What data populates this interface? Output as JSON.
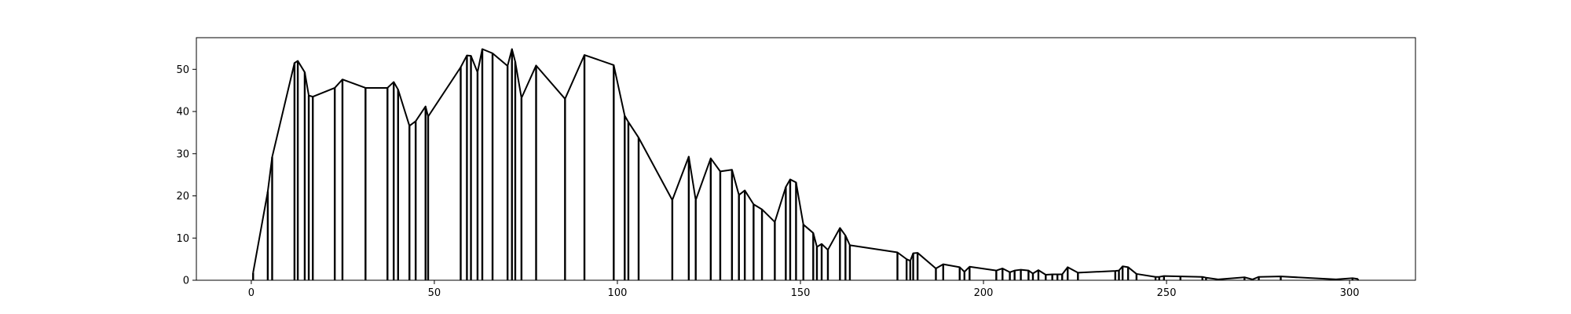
{
  "chart_data": {
    "type": "line",
    "title": "",
    "xlabel": "",
    "ylabel": "",
    "xlim": [
      -15,
      318
    ],
    "ylim": [
      0,
      57.5
    ],
    "xticks": [
      0,
      50,
      100,
      150,
      200,
      250,
      300
    ],
    "yticks": [
      0,
      10,
      20,
      30,
      40,
      50
    ],
    "xtick_labels": [
      "0",
      "50",
      "100",
      "150",
      "200",
      "250",
      "300"
    ],
    "ytick_labels": [
      "0",
      "10",
      "20",
      "30",
      "40",
      "50"
    ],
    "grid": false,
    "legend": "none",
    "line_color": "#000000",
    "drop_lines": true,
    "x": [
      0.5,
      4.5,
      5.7,
      11.8,
      12.7,
      14.6,
      15.7,
      16.8,
      22.8,
      24.9,
      31.2,
      37.2,
      38.9,
      40.1,
      43.2,
      44.9,
      47.6,
      48.3,
      57.2,
      58.9,
      60.0,
      61.8,
      63.1,
      65.9,
      70.0,
      71.2,
      72.1,
      73.8,
      77.8,
      85.7,
      91.0,
      99.0,
      102.0,
      103.0,
      105.8,
      115.0,
      119.5,
      121.4,
      125.5,
      128.1,
      131.3,
      133.2,
      134.8,
      137.2,
      139.5,
      143.0,
      146.0,
      147.2,
      148.8,
      150.8,
      153.5,
      154.5,
      155.8,
      157.5,
      160.8,
      162.3,
      163.5,
      176.5,
      179.0,
      180.0,
      180.8,
      182.0,
      187.0,
      189.0,
      193.5,
      194.8,
      196.2,
      203.5,
      205.2,
      207.2,
      208.5,
      210.2,
      212.3,
      213.5,
      215.0,
      217.0,
      218.8,
      220.2,
      221.5,
      223.0,
      225.8,
      236.0,
      237.0,
      238.0,
      239.5,
      241.8,
      247.0,
      248.0,
      249.3,
      253.8,
      259.8,
      260.8,
      264.2,
      271.3,
      273.5,
      275.2,
      281.2,
      296.3,
      300.8,
      302.3
    ],
    "y": [
      1.8,
      21.0,
      29.2,
      51.5,
      52.0,
      49.3,
      43.8,
      43.5,
      45.6,
      47.6,
      45.6,
      45.6,
      47.0,
      45.2,
      36.6,
      37.7,
      41.2,
      38.8,
      50.5,
      53.3,
      53.2,
      49.3,
      54.8,
      53.8,
      50.8,
      54.8,
      51.8,
      43.2,
      50.9,
      43.0,
      53.4,
      51.0,
      39.0,
      37.5,
      33.8,
      19.0,
      29.3,
      19.0,
      28.9,
      25.8,
      26.2,
      20.2,
      21.3,
      18.0,
      16.8,
      13.8,
      22.1,
      23.9,
      23.2,
      13.2,
      11.2,
      7.9,
      8.6,
      7.2,
      12.4,
      10.6,
      8.3,
      6.6,
      5.0,
      4.6,
      6.4,
      6.5,
      2.8,
      3.8,
      3.1,
      2.0,
      3.2,
      2.3,
      2.8,
      1.9,
      2.3,
      2.5,
      2.3,
      1.6,
      2.4,
      1.3,
      1.4,
      1.4,
      1.4,
      3.1,
      1.8,
      2.2,
      2.3,
      3.3,
      3.1,
      1.5,
      0.8,
      0.8,
      1.0,
      0.9,
      0.8,
      0.6,
      0.2,
      0.7,
      0.2,
      0.8,
      0.9,
      0.2,
      0.5,
      0.3
    ]
  }
}
